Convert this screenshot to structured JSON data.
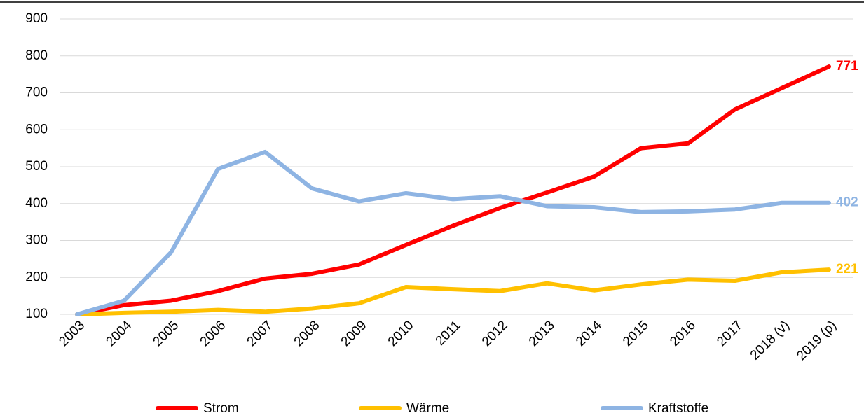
{
  "chart_data": {
    "type": "line",
    "categories": [
      "2003",
      "2004",
      "2005",
      "2006",
      "2007",
      "2008",
      "2009",
      "2010",
      "2011",
      "2012",
      "2013",
      "2014",
      "2015",
      "2016",
      "2017",
      "2018 (v)",
      "2019 (p)"
    ],
    "series": [
      {
        "name": "Strom",
        "color": "#ff0000",
        "values": [
          100,
          125,
          137,
          163,
          197,
          210,
          235,
          288,
          340,
          388,
          430,
          473,
          550,
          563,
          655,
          713,
          771
        ]
      },
      {
        "name": "Wärme",
        "color": "#ffc000",
        "values": [
          100,
          104,
          107,
          112,
          107,
          116,
          130,
          174,
          168,
          163,
          184,
          165,
          181,
          194,
          191,
          214,
          221
        ]
      },
      {
        "name": "Kraftstoffe",
        "color": "#8eb4e3",
        "values": [
          100,
          137,
          268,
          494,
          540,
          441,
          406,
          428,
          412,
          420,
          393,
          390,
          377,
          379,
          384,
          402,
          402
        ]
      }
    ],
    "ylim": [
      100,
      900
    ],
    "yticks": [
      100,
      200,
      300,
      400,
      500,
      600,
      700,
      800,
      900
    ],
    "grid": true
  }
}
